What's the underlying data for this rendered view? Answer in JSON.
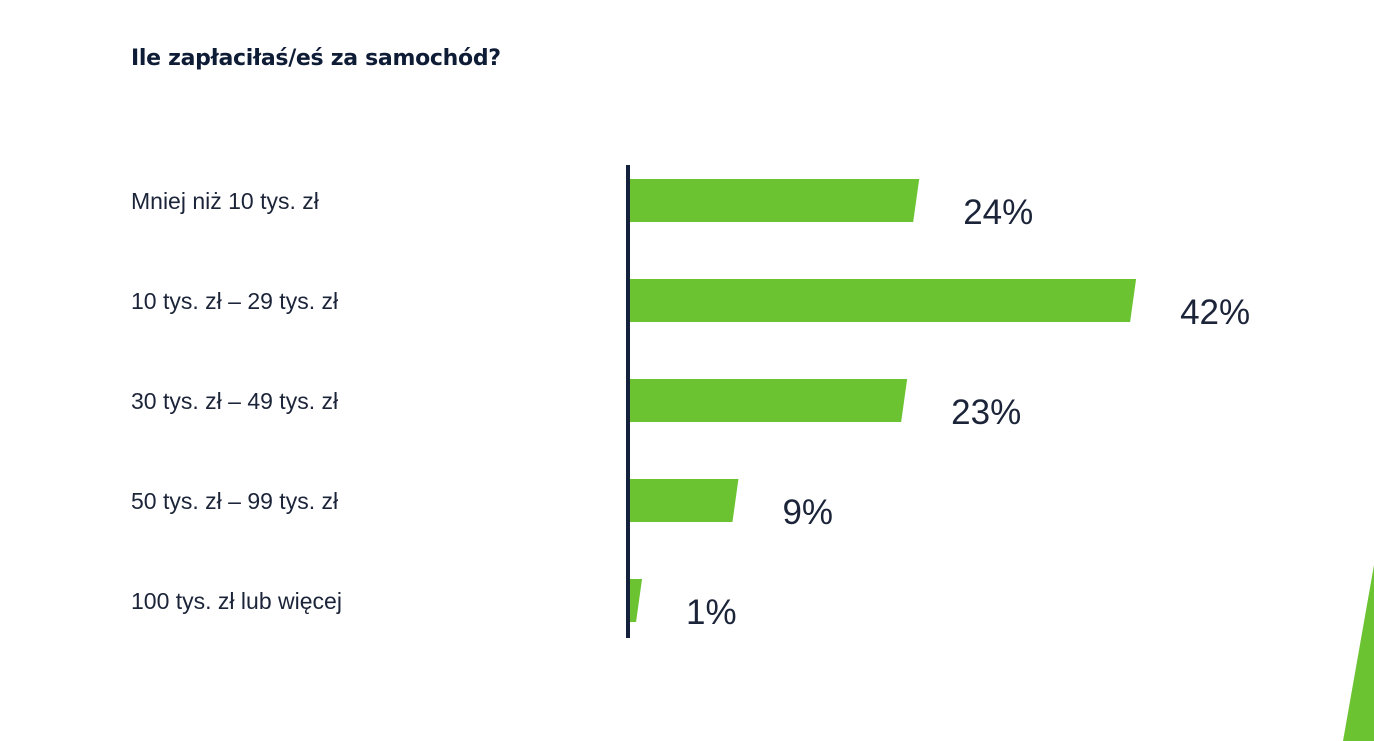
{
  "chart_data": {
    "type": "bar",
    "orientation": "horizontal",
    "title": "Ile zapłaciłaś/eś za samochód?",
    "categories": [
      "Mniej niż 10 tys. zł",
      "10 tys. zł – 29 tys. zł",
      "30 tys. zł – 49 tys. zł",
      "50 tys. zł – 99 tys. zł",
      "100 tys. zł lub więcej"
    ],
    "values": [
      24,
      42,
      23,
      9,
      1
    ],
    "value_labels": [
      "24%",
      "42%",
      "23%",
      "9%",
      "1%"
    ],
    "unit": "%",
    "xlim": [
      0,
      100
    ],
    "grid": false,
    "legend": "none",
    "colors": {
      "bar": "#6cc331",
      "axis": "#14213d",
      "text": "#1b2438",
      "accent_triangle": "#6cc331"
    }
  }
}
